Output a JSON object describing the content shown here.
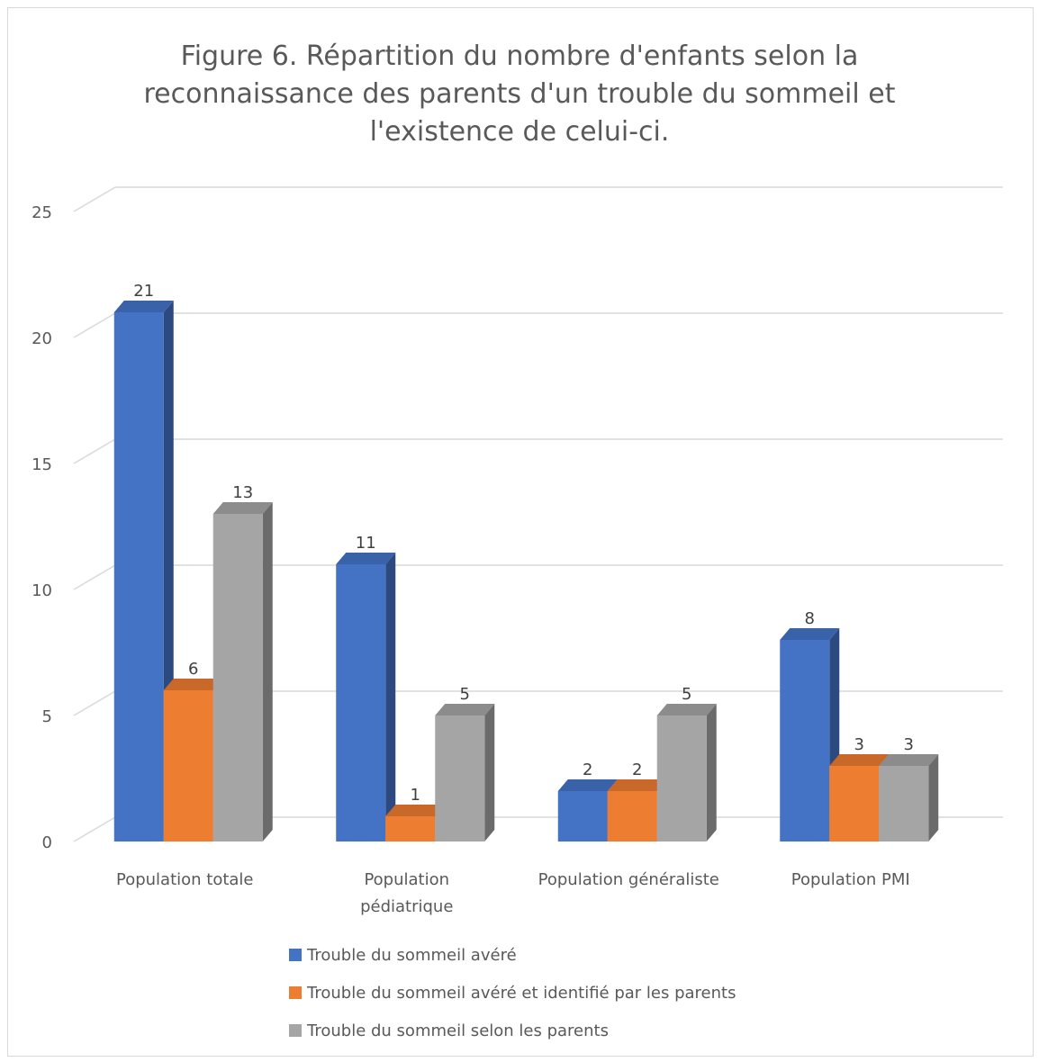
{
  "chart_data": {
    "type": "bar",
    "title": "Figure 6. Répartition du nombre d'enfants  selon la reconnaissance des parents d'un trouble du sommeil et l'existence de celui-ci.",
    "title_lines": [
      "Figure 6. Répartition du nombre d'enfants  selon la",
      "reconnaissance des parents d'un trouble du sommeil et",
      "l'existence de celui-ci."
    ],
    "categories": [
      [
        "Population totale"
      ],
      [
        "Population",
        "pédiatrique"
      ],
      [
        "Population généraliste"
      ],
      [
        "Population PMI"
      ]
    ],
    "series": [
      {
        "name": "Trouble du sommeil avéré",
        "values": [
          21,
          11,
          2,
          8
        ],
        "color": "#4472c4",
        "side": "#2c4a80",
        "top": "#3a62a8"
      },
      {
        "name": "Trouble du sommeil avéré et identifié par les parents",
        "values": [
          6,
          1,
          2,
          3
        ],
        "color": "#ed7d31",
        "side": "#a85a24",
        "top": "#c8692a"
      },
      {
        "name": "Trouble du sommeil selon les parents",
        "values": [
          13,
          5,
          5,
          3
        ],
        "color": "#a5a5a5",
        "side": "#6b6b6b",
        "top": "#8c8c8c"
      }
    ],
    "y_ticks": [
      "0",
      "5",
      "10",
      "15",
      "20",
      "25"
    ],
    "ylim": [
      0,
      25
    ],
    "grid": true,
    "data_labels": true,
    "legend_position": "bottom",
    "three_d": true
  }
}
